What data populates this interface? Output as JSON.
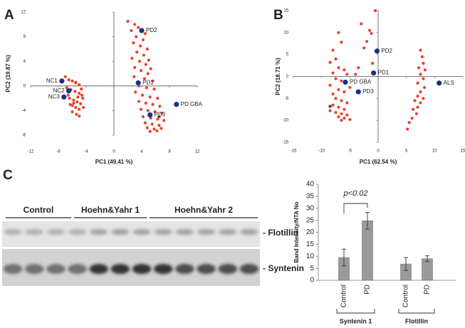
{
  "panel_labels": [
    "A",
    "B",
    "C"
  ],
  "chart_data": [
    {
      "type": "scatter",
      "xlabel": "PC1 (49.41 %)",
      "ylabel": "PC2 (19.87 %)",
      "xlim": [
        -12,
        12
      ],
      "ylim": [
        -8,
        12
      ],
      "xticks": [
        -12,
        -8,
        -4,
        0,
        4,
        8,
        12
      ],
      "yticks": [
        -8,
        -4,
        0,
        4,
        8,
        12
      ],
      "points": {
        "color": "#e8412c",
        "x": [
          -7,
          -6.5,
          -6,
          -5.5,
          -5,
          -6.8,
          -6.2,
          -5.6,
          -5,
          -4.6,
          -6.4,
          -5.8,
          -5.3,
          -4.8,
          -6,
          -5.5,
          -5,
          -4.5,
          -6.6,
          -6,
          -5.4,
          -5,
          -5.8,
          -5.2,
          -4.7,
          -5.5,
          -6.3,
          -4.4,
          2,
          3,
          3.5,
          2.5,
          4.5,
          3.2,
          4.2,
          2.8,
          3.8,
          4.8,
          3.3,
          4.3,
          2.6,
          5,
          3.7,
          4.6,
          3,
          5.3,
          3.9,
          4.9,
          2.9,
          4.4,
          5.6,
          3.6,
          4.7,
          5.8,
          3.1,
          4.1,
          5.2,
          6.3,
          3.6,
          4.6,
          5.6,
          6.6,
          3.9,
          4.9,
          5.9,
          6.9,
          4.2,
          5.3,
          6.3,
          7.2,
          4.5,
          5.5,
          6.5,
          4.8,
          5.8,
          6.8,
          5.2,
          6.2
        ],
        "y": [
          1.5,
          1,
          0.8,
          0.5,
          0.2,
          -0.3,
          -0.6,
          -0.9,
          -1.2,
          -1.5,
          -2,
          -2.3,
          -2.6,
          -2.9,
          -3.2,
          -3.5,
          -3.8,
          -2,
          -1.5,
          -4.2,
          -4.6,
          -4.9,
          -2.8,
          -1.8,
          -0.5,
          0.6,
          -3,
          -3.5,
          10.5,
          10,
          9.5,
          9,
          8.5,
          8,
          7.5,
          7,
          6.5,
          6,
          5.5,
          5,
          4.5,
          4.2,
          4,
          3.5,
          3,
          2.8,
          2.5,
          2,
          1.5,
          1.2,
          0.8,
          0,
          -0.3,
          -0.5,
          -1,
          -1.5,
          -1.8,
          -2,
          -2.5,
          -2.8,
          -3,
          -3.3,
          -3.8,
          -4,
          -4.2,
          -4.4,
          -5,
          -5.2,
          -5.4,
          -5.6,
          -6,
          -6.2,
          -6.4,
          -6.8,
          -7,
          -6.9,
          -7.4,
          -7.3
        ]
      },
      "labeled_points": {
        "color": "#1a2f8a",
        "labels": [
          "NC1",
          "NC2",
          "NC3",
          "PD1",
          "PD2",
          "PD3",
          "PD GBA"
        ],
        "x": [
          -7.5,
          -6.5,
          -7.2,
          3.5,
          4,
          5.2,
          9
        ],
        "y": [
          0.8,
          -0.8,
          -1.8,
          0.5,
          9,
          -4.7,
          -3
        ]
      },
      "annotations": [
        {
          "text": "*",
          "x": 6.5,
          "y": -5
        }
      ]
    },
    {
      "type": "scatter",
      "xlabel": "PC1 (62.54 %)",
      "ylabel": "PC2 (18.71 %)",
      "xlim": [
        -15,
        15
      ],
      "ylim": [
        -15,
        15
      ],
      "xticks": [
        -15,
        -10,
        -5,
        0,
        5,
        10,
        15
      ],
      "yticks": [
        -15,
        -10,
        -5,
        0,
        5,
        10,
        15
      ],
      "points": {
        "color": "#e8412c",
        "x": [
          -7,
          -6.5,
          -8,
          -7.5,
          -8.5,
          -7,
          -6,
          -8,
          -5.5,
          -7.5,
          -6.5,
          -8.5,
          -5,
          -7,
          -6,
          -8,
          -7.5,
          -6.5,
          -5.5,
          -8,
          -7,
          -6,
          -8.5,
          -7.5,
          -6.5,
          -5.5,
          -7,
          -6,
          -5,
          -6.5,
          -1.5,
          -1.2,
          -3,
          -0.5,
          -2,
          -2.5,
          -1,
          -3.5,
          -4,
          7.5,
          7.8,
          8,
          7.2,
          8.3,
          7.5,
          8,
          7,
          8.2,
          7.5,
          7,
          8,
          6.5,
          7.5,
          7,
          6.2,
          6.8,
          6,
          5.5,
          5.2
        ],
        "y": [
          10,
          7.8,
          6,
          4,
          3.2,
          2,
          1.5,
          0.8,
          0.5,
          -0.5,
          -1,
          -2,
          -2.5,
          -3,
          -3.5,
          -4,
          -5,
          -5.5,
          -6,
          -6.5,
          -7,
          -7.5,
          -7.8,
          -8.2,
          -8.5,
          -8.8,
          -9.2,
          -9.5,
          -9.8,
          -10,
          10.5,
          9.8,
          12,
          15,
          8,
          6.5,
          3,
          2,
          0.5,
          6,
          4.5,
          3,
          2,
          1.5,
          0.5,
          -0.5,
          -1.5,
          -2.5,
          -3.5,
          -4.5,
          -5,
          -5.5,
          -6,
          -7,
          -7.5,
          -8.5,
          -9.5,
          -10.5,
          -12
        ]
      },
      "labeled_points": {
        "color": "#1a2f8a",
        "labels": [
          "PD2",
          "PD1",
          "PD GBA",
          "PD3",
          "ALS"
        ],
        "x": [
          -0.2,
          -0.8,
          -5.8,
          -3.5,
          10.8
        ],
        "y": [
          5.8,
          0.8,
          -1.3,
          -3.5,
          -1.5
        ]
      },
      "annotations": [
        {
          "text": "*",
          "x": -8.5,
          "y": -6.8
        }
      ]
    },
    {
      "type": "bar",
      "ylabel": "Band Intensity/NTA No",
      "ylim": [
        0,
        40
      ],
      "yticks": [
        0,
        5,
        10,
        15,
        20,
        25,
        30,
        35,
        40
      ],
      "categories": [
        "Control",
        "PD",
        "Control",
        "PD"
      ],
      "group_labels": [
        "Syntenin 1",
        "Flotillin"
      ],
      "values": [
        9.5,
        24.8,
        6.8,
        9
      ],
      "errors": [
        3.5,
        3.5,
        2.7,
        1.2
      ],
      "color": "#9a9a9a",
      "annotations": [
        {
          "text": "p<0.02"
        }
      ]
    }
  ],
  "blot": {
    "groups": [
      "Control",
      "Hoehn&Yahr 1",
      "Hoehn&Yahr 2"
    ],
    "bands": [
      "- Flotillin",
      "- Syntenin"
    ]
  }
}
